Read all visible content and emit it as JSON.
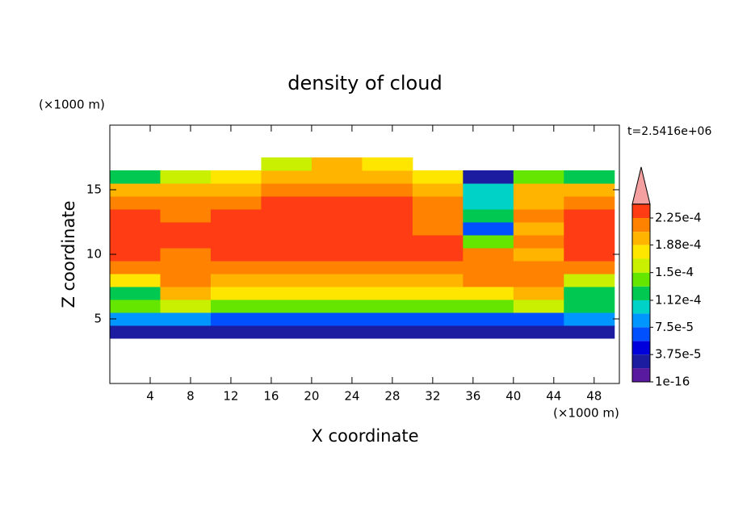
{
  "chart_data": {
    "type": "contour",
    "title": "density of cloud",
    "xlabel": "X coordinate",
    "ylabel": "Z coordinate",
    "xunit": "(×1000 m)",
    "yunit": "(×1000 m)",
    "time_label": "t=2.5416e+06",
    "xlim": [
      0,
      50.5
    ],
    "ylim": [
      0,
      20
    ],
    "xticks": [
      4,
      8,
      12,
      16,
      20,
      24,
      28,
      32,
      36,
      40,
      44,
      48
    ],
    "yticks": [
      5,
      10,
      15
    ],
    "x": [
      2.5,
      7.5,
      12.5,
      17.5,
      22.5,
      27.5,
      32.5,
      37.5,
      42.5,
      47.5
    ],
    "y": [
      4,
      5,
      6,
      7,
      8,
      9,
      10,
      11,
      12,
      13,
      14,
      15,
      16,
      17
    ],
    "z": [
      [
        2e-05,
        2e-05,
        2e-05,
        2e-05,
        2e-05,
        2e-05,
        2e-05,
        2e-05,
        2e-05,
        2e-05
      ],
      [
        9e-05,
        8e-05,
        7e-05,
        7e-05,
        7e-05,
        7e-05,
        7e-05,
        7e-05,
        7e-05,
        9e-05
      ],
      [
        0.00014,
        0.00015,
        0.000145,
        0.000145,
        0.000145,
        0.000145,
        0.000145,
        0.000145,
        0.00015,
        0.00013
      ],
      [
        0.00013,
        0.00019,
        0.000185,
        0.000185,
        0.000185,
        0.000185,
        0.000185,
        0.000185,
        0.00019,
        0.00012
      ],
      [
        0.00017,
        0.00021,
        0.000205,
        0.000205,
        0.000205,
        0.000205,
        0.000205,
        0.00021,
        0.00021,
        0.00016
      ],
      [
        0.00022,
        0.00022,
        0.00022,
        0.00022,
        0.00022,
        0.00022,
        0.00022,
        0.00022,
        0.00022,
        0.00021
      ],
      [
        0.00023,
        0.00022,
        0.00023,
        0.00023,
        0.00023,
        0.00023,
        0.00023,
        0.00022,
        0.0002,
        0.00023
      ],
      [
        0.00023,
        0.00023,
        0.00023,
        0.00023,
        0.00023,
        0.00023,
        0.000225,
        0.00014,
        0.00021,
        0.00023
      ],
      [
        0.00023,
        0.00023,
        0.00023,
        0.00023,
        0.00023,
        0.00023,
        0.00022,
        6e-05,
        0.00019,
        0.00023
      ],
      [
        0.00023,
        0.00022,
        0.00023,
        0.00023,
        0.00023,
        0.00023,
        0.00022,
        0.00012,
        0.00021,
        0.00023
      ],
      [
        0.00021,
        0.00021,
        0.00022,
        0.00023,
        0.00023,
        0.00023,
        0.00021,
        0.0001,
        0.0002,
        0.00022
      ],
      [
        0.00019,
        0.0002,
        0.0002,
        0.00021,
        0.00021,
        0.00021,
        0.0002,
        0.0001,
        0.00019,
        0.0002
      ],
      [
        0.00012,
        0.00015,
        0.00018,
        0.00019,
        0.0002,
        0.00019,
        0.00018,
        3e-05,
        0.00014,
        0.00013
      ],
      [
        null,
        null,
        null,
        0.00016,
        0.00019,
        0.00017,
        null,
        null,
        null,
        null
      ]
    ],
    "levels": [
      1e-16,
      1.875e-05,
      3.75e-05,
      5.625e-05,
      7.5e-05,
      9.375e-05,
      0.000112,
      0.000131,
      0.00015,
      0.000169,
      0.000188,
      0.000206,
      0.000225,
      0.000244
    ],
    "colors": [
      "#5a1aa0",
      "#1c1ca0",
      "#0000dc",
      "#0050ff",
      "#0096ff",
      "#00d2c8",
      "#00c850",
      "#64e600",
      "#c8f000",
      "#ffe600",
      "#ffb400",
      "#ff8200",
      "#ff3c14"
    ],
    "extend_color": "#f4a0a0",
    "colorbar_ticks": [
      {
        "value": 1e-16,
        "label": "1e-16"
      },
      {
        "value": 3.75e-05,
        "label": "3.75e-5"
      },
      {
        "value": 7.5e-05,
        "label": "7.5e-5"
      },
      {
        "value": 0.000112,
        "label": "1.12e-4"
      },
      {
        "value": 0.00015,
        "label": "1.5e-4"
      },
      {
        "value": 0.000188,
        "label": "1.88e-4"
      },
      {
        "value": 0.000225,
        "label": "2.25e-4"
      }
    ]
  }
}
